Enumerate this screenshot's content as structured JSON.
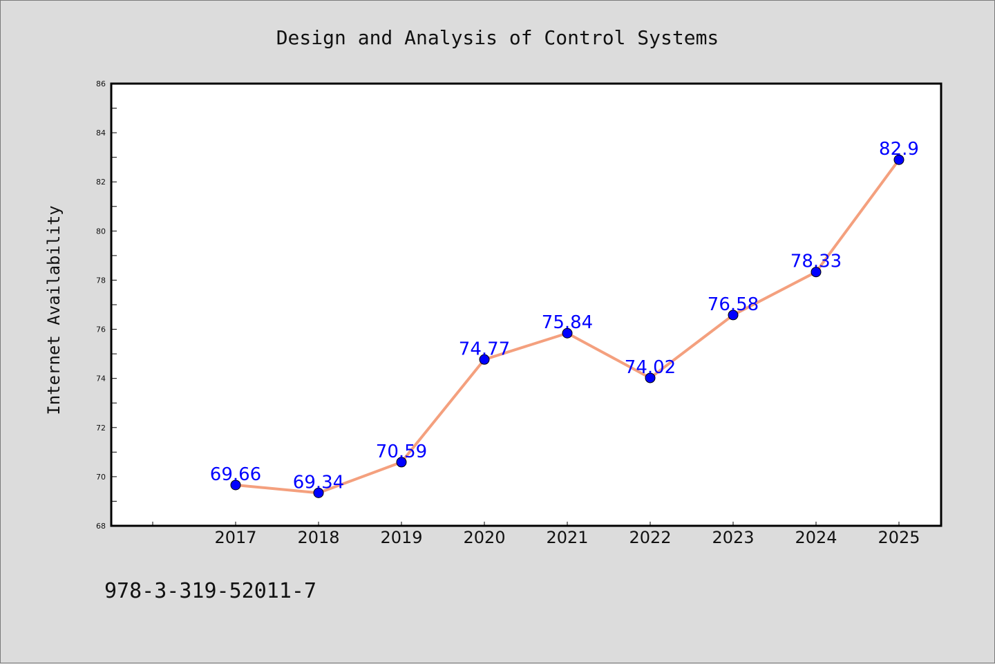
{
  "chart_data": {
    "type": "line",
    "title": "Design and Analysis of Control Systems",
    "xlabel": "",
    "ylabel": "Internet Availability",
    "categories": [
      "2017",
      "2018",
      "2019",
      "2020",
      "2021",
      "2022",
      "2023",
      "2024",
      "2025"
    ],
    "series": [
      {
        "values": [
          69.66,
          69.34,
          70.59,
          74.77,
          75.84,
          74.02,
          76.58,
          78.33,
          82.9
        ],
        "labels": [
          "69.66",
          "69.34",
          "70.59",
          "74.77",
          "75.84",
          "74.02",
          "76.58",
          "78.33",
          "82.9"
        ],
        "line_color": "#f4a07e",
        "marker_color": "#0000ff"
      }
    ],
    "ylim": [
      68,
      86
    ],
    "yticks": [
      "68",
      "70",
      "72",
      "74",
      "76",
      "78",
      "80",
      "82",
      "84",
      "86"
    ],
    "grid": false,
    "legend": "none"
  },
  "footnote": "978-3-319-52011-7",
  "colors": {
    "background": "#dcdcdc",
    "plot_background": "#ffffff",
    "axis": "#000000"
  }
}
